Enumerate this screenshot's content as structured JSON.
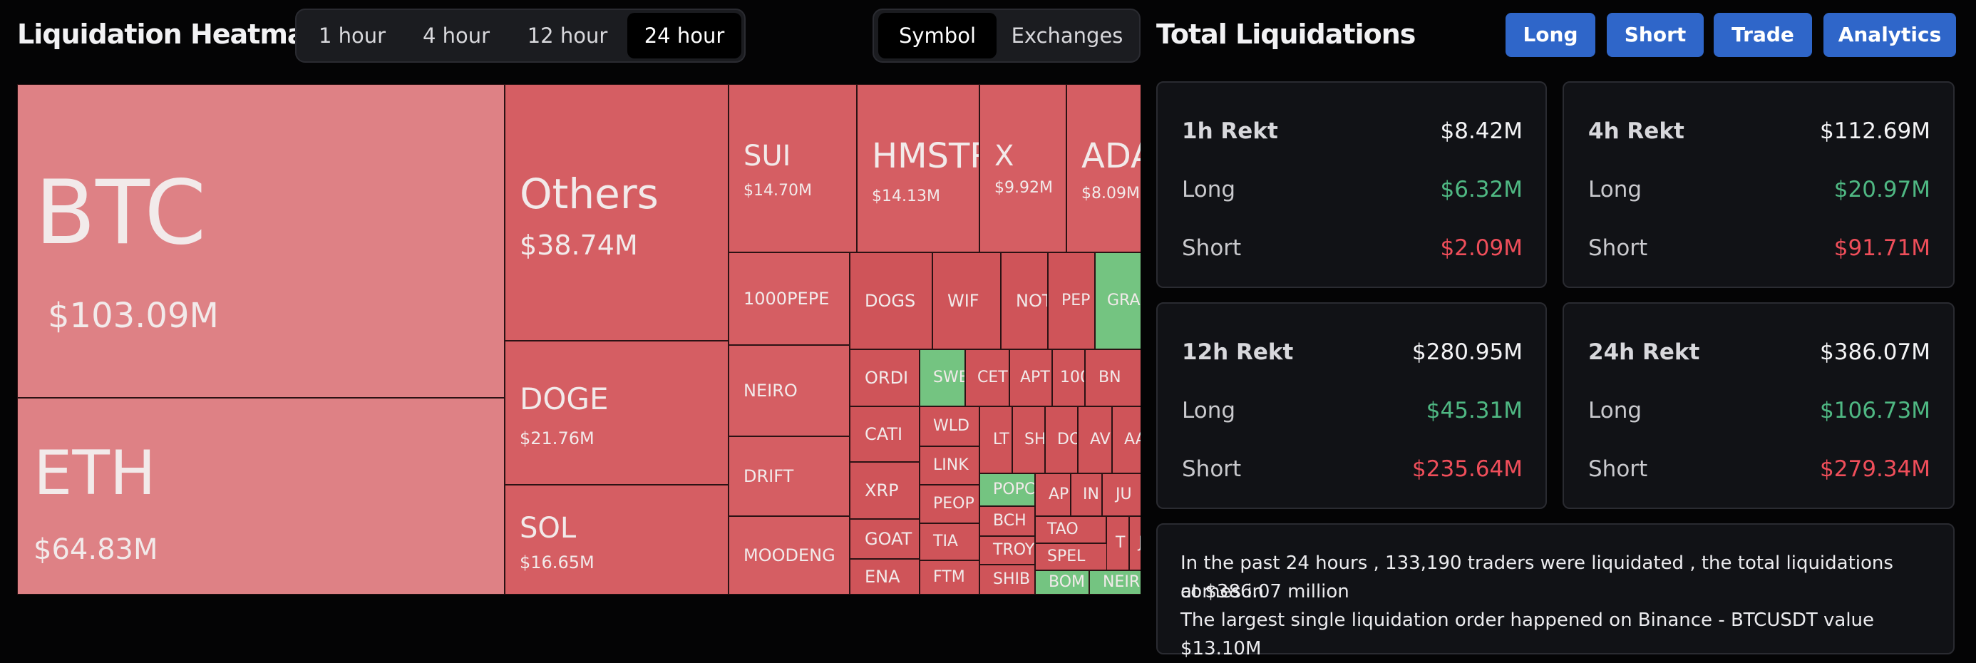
{
  "heatmap": {
    "title": "Liquidation Heatmap",
    "time_tabs": [
      {
        "label": "1 hour",
        "active": false
      },
      {
        "label": "4 hour",
        "active": false
      },
      {
        "label": "12 hour",
        "active": false
      },
      {
        "label": "24 hour",
        "active": true
      }
    ],
    "view_tabs": [
      {
        "label": "Symbol",
        "active": true
      },
      {
        "label": "Exchanges",
        "active": false
      }
    ],
    "tiles": [
      {
        "symbol": "BTC",
        "value": "$103.09M",
        "color": "#de8185"
      },
      {
        "symbol": "ETH",
        "value": "$64.83M",
        "color": "#de8185"
      },
      {
        "symbol": "Others",
        "value": "$38.74M",
        "color": "#d55e63"
      },
      {
        "symbol": "DOGE",
        "value": "$21.76M",
        "color": "#d55e63"
      },
      {
        "symbol": "SOL",
        "value": "$16.65M",
        "color": "#d55e63"
      },
      {
        "symbol": "SUI",
        "value": "$14.70M",
        "color": "#d55e63"
      },
      {
        "symbol": "HMSTR",
        "value": "$14.13M",
        "color": "#d55e63"
      },
      {
        "symbol": "X",
        "value": "$9.92M",
        "color": "#d55e63"
      },
      {
        "symbol": "ADA",
        "value": "$8.09M",
        "color": "#d55e63"
      },
      {
        "symbol": "1000PEPE",
        "value": "",
        "color": "#d55e63"
      },
      {
        "symbol": "NEIRO",
        "value": "",
        "color": "#d55e63"
      },
      {
        "symbol": "DRIFT",
        "value": "",
        "color": "#d55e63"
      },
      {
        "symbol": "MOODENG",
        "value": "",
        "color": "#d55e63"
      },
      {
        "symbol": "DOGS",
        "value": "",
        "color": "#cf5459"
      },
      {
        "symbol": "WIF",
        "value": "",
        "color": "#cf5459"
      },
      {
        "symbol": "NOT",
        "value": "",
        "color": "#cf5459"
      },
      {
        "symbol": "PEP",
        "value": "",
        "color": "#cf5459"
      },
      {
        "symbol": "GRA",
        "value": "",
        "color": "#74c481"
      },
      {
        "symbol": "ORDI",
        "value": "",
        "color": "#cf5459"
      },
      {
        "symbol": "SWE",
        "value": "",
        "color": "#74c481"
      },
      {
        "symbol": "CET",
        "value": "",
        "color": "#cf5459"
      },
      {
        "symbol": "APT",
        "value": "",
        "color": "#cf5459"
      },
      {
        "symbol": "100",
        "value": "",
        "color": "#cf5459"
      },
      {
        "symbol": "BN",
        "value": "",
        "color": "#cf5459"
      },
      {
        "symbol": "CATI",
        "value": "",
        "color": "#cf5459"
      },
      {
        "symbol": "WLD",
        "value": "",
        "color": "#cf5459"
      },
      {
        "symbol": "LT",
        "value": "",
        "color": "#cf5459"
      },
      {
        "symbol": "SH",
        "value": "",
        "color": "#cf5459"
      },
      {
        "symbol": "DO",
        "value": "",
        "color": "#cf5459"
      },
      {
        "symbol": "AV",
        "value": "",
        "color": "#cf5459"
      },
      {
        "symbol": "AA",
        "value": "",
        "color": "#cf5459"
      },
      {
        "symbol": "XRP",
        "value": "",
        "color": "#cf5459"
      },
      {
        "symbol": "LINK",
        "value": "",
        "color": "#cf5459"
      },
      {
        "symbol": "POPC",
        "value": "",
        "color": "#74c481"
      },
      {
        "symbol": "AP",
        "value": "",
        "color": "#cf5459"
      },
      {
        "symbol": "IN",
        "value": "",
        "color": "#cf5459"
      },
      {
        "symbol": "JU",
        "value": "",
        "color": "#cf5459"
      },
      {
        "symbol": "PEOP",
        "value": "",
        "color": "#cf5459"
      },
      {
        "symbol": "BCH",
        "value": "",
        "color": "#cf5459"
      },
      {
        "symbol": "TAO",
        "value": "",
        "color": "#cf5459"
      },
      {
        "symbol": "GOAT",
        "value": "",
        "color": "#cf5459"
      },
      {
        "symbol": "TIA",
        "value": "",
        "color": "#cf5459"
      },
      {
        "symbol": "TROY",
        "value": "",
        "color": "#cf5459"
      },
      {
        "symbol": "SPEL",
        "value": "",
        "color": "#cf5459"
      },
      {
        "symbol": "T",
        "value": "",
        "color": "#cf5459"
      },
      {
        "symbol": "J",
        "value": "",
        "color": "#cf5459"
      },
      {
        "symbol": "ENA",
        "value": "",
        "color": "#cf5459"
      },
      {
        "symbol": "FTM",
        "value": "",
        "color": "#cf5459"
      },
      {
        "symbol": "SHIB",
        "value": "",
        "color": "#cf5459"
      },
      {
        "symbol": "BOM",
        "value": "",
        "color": "#74c481"
      },
      {
        "symbol": "NEIR",
        "value": "",
        "color": "#74c481"
      }
    ]
  },
  "totals": {
    "title": "Total Liquidations",
    "actions": [
      "Long",
      "Short",
      "Trade",
      "Analytics"
    ],
    "cards": [
      {
        "title": "1h Rekt",
        "total": "$8.42M",
        "long_label": "Long",
        "long": "$6.32M",
        "short_label": "Short",
        "short": "$2.09M"
      },
      {
        "title": "4h Rekt",
        "total": "$112.69M",
        "long_label": "Long",
        "long": "$20.97M",
        "short_label": "Short",
        "short": "$91.71M"
      },
      {
        "title": "12h Rekt",
        "total": "$280.95M",
        "long_label": "Long",
        "long": "$45.31M",
        "short_label": "Short",
        "short": "$235.64M"
      },
      {
        "title": "24h Rekt",
        "total": "$386.07M",
        "long_label": "Long",
        "long": "$106.73M",
        "short_label": "Short",
        "short": "$279.34M"
      }
    ],
    "summary": {
      "line1": "In the past 24 hours , 133,190 traders were liquidated , the total liquidations comes in",
      "line2": "at $386.07 million",
      "line3": "The largest single liquidation order happened on Binance - BTCUSDT value $13.10M"
    }
  }
}
